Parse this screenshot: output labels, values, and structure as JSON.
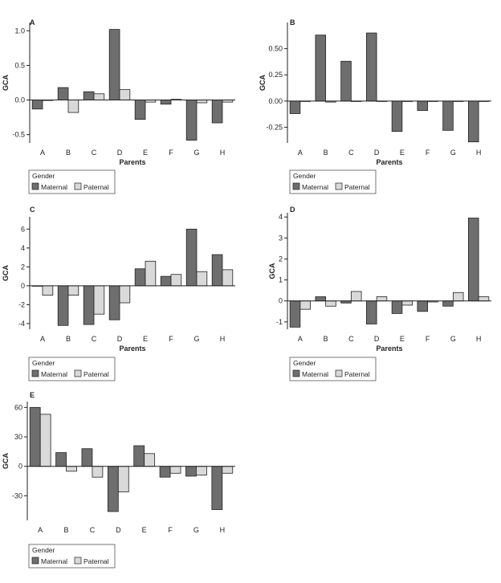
{
  "figure": {
    "background": "#ffffff"
  },
  "colors": {
    "maternal": "#6e6e6e",
    "paternal": "#d9d9d9",
    "outline": "#222222"
  },
  "legend": {
    "title": "Gender",
    "maternal_label": "Maternal",
    "paternal_label": "Paternal",
    "placement": "bottom-left"
  },
  "chart_data": [
    {
      "panel": "A",
      "type": "bar",
      "categories": [
        "A",
        "B",
        "C",
        "D",
        "E",
        "F",
        "G",
        "H"
      ],
      "xlabel": "Parents",
      "ylabel": "GCA",
      "ylim": [
        -0.62,
        1.12
      ],
      "yticks": [
        1.0,
        0.5,
        0.0,
        -0.5
      ],
      "ytick_labels": [
        "1.0",
        "0.5",
        "0.0",
        "-0.5"
      ],
      "series": [
        {
          "name": "Maternal",
          "values": [
            -0.13,
            0.18,
            0.12,
            1.02,
            -0.28,
            -0.06,
            -0.58,
            -0.33
          ]
        },
        {
          "name": "Paternal",
          "values": [
            0.0,
            -0.18,
            0.09,
            0.15,
            -0.03,
            0.01,
            -0.04,
            -0.03
          ]
        }
      ]
    },
    {
      "panel": "B",
      "type": "bar",
      "categories": [
        "A",
        "B",
        "C",
        "D",
        "E",
        "F",
        "G",
        "H"
      ],
      "xlabel": "Parents",
      "ylabel": "GCA",
      "ylim": [
        -0.4,
        0.75
      ],
      "yticks": [
        0.5,
        0.25,
        0.0,
        -0.25
      ],
      "ytick_labels": [
        "0.50",
        "0.25",
        "0.00",
        "-0.25"
      ],
      "series": [
        {
          "name": "Maternal",
          "values": [
            -0.12,
            0.63,
            0.38,
            0.65,
            -0.29,
            -0.09,
            -0.28,
            -0.39
          ]
        },
        {
          "name": "Paternal",
          "values": [
            0.0,
            -0.01,
            0.0,
            0.0,
            0.0,
            0.0,
            0.0,
            0.0
          ]
        }
      ]
    },
    {
      "panel": "C",
      "type": "bar",
      "categories": [
        "A",
        "B",
        "C",
        "D",
        "E",
        "F",
        "G",
        "H"
      ],
      "xlabel": "Parents",
      "ylabel": "GCA",
      "ylim": [
        -4.6,
        7.3
      ],
      "yticks": [
        6,
        4,
        2,
        0,
        -2,
        -4
      ],
      "ytick_labels": [
        "6",
        "4",
        "2",
        "0",
        "-2",
        "-4"
      ],
      "series": [
        {
          "name": "Maternal",
          "values": [
            0.0,
            -4.2,
            -4.1,
            -3.6,
            1.8,
            1.0,
            6.0,
            3.3
          ]
        },
        {
          "name": "Paternal",
          "values": [
            -1.0,
            -1.0,
            -3.0,
            -1.8,
            2.6,
            1.2,
            1.5,
            1.7
          ]
        }
      ]
    },
    {
      "panel": "D",
      "type": "bar",
      "categories": [
        "A",
        "B",
        "C",
        "D",
        "E",
        "F",
        "G",
        "H"
      ],
      "xlabel": "Parents",
      "ylabel": "GCA",
      "ylim": [
        -1.35,
        4.2
      ],
      "yticks": [
        4,
        3,
        2,
        1,
        0,
        -1
      ],
      "ytick_labels": [
        "4",
        "3",
        "2",
        "1",
        "0",
        "-1"
      ],
      "series": [
        {
          "name": "Maternal",
          "values": [
            -1.25,
            0.2,
            -0.1,
            -1.1,
            -0.6,
            -0.5,
            -0.25,
            3.95
          ]
        },
        {
          "name": "Paternal",
          "values": [
            -0.4,
            -0.25,
            0.45,
            0.2,
            -0.2,
            -0.05,
            0.4,
            0.2
          ]
        }
      ]
    },
    {
      "panel": "E",
      "type": "bar",
      "categories": [
        "A",
        "B",
        "C",
        "D",
        "E",
        "F",
        "G",
        "H"
      ],
      "xlabel": "",
      "ylabel": "GCA",
      "ylim": [
        -55,
        66
      ],
      "yticks": [
        60,
        30,
        0,
        -30
      ],
      "ytick_labels": [
        "60",
        "30",
        "0",
        "-30"
      ],
      "series": [
        {
          "name": "Maternal",
          "values": [
            60,
            14,
            18,
            -46,
            21,
            -11,
            -10,
            -44
          ]
        },
        {
          "name": "Paternal",
          "values": [
            53,
            -5,
            -11,
            -26,
            13,
            -7,
            -9,
            -7
          ]
        }
      ]
    }
  ]
}
